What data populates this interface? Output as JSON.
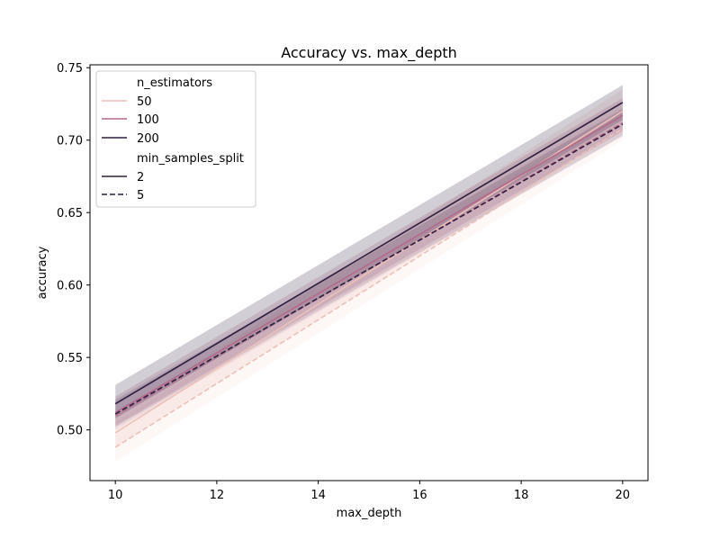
{
  "chart_data": {
    "type": "line",
    "title": "Accuracy vs. max_depth",
    "xlabel": "max_depth",
    "ylabel": "accuracy",
    "xlim": [
      9.5,
      20.5
    ],
    "ylim": [
      0.465,
      0.752
    ],
    "xticks": [
      10,
      12,
      14,
      16,
      18,
      20
    ],
    "yticks": [
      0.5,
      0.55,
      0.6,
      0.65,
      0.7,
      0.75
    ],
    "xtick_labels": [
      "10",
      "12",
      "14",
      "16",
      "18",
      "20"
    ],
    "ytick_labels": [
      "0.50",
      "0.55",
      "0.60",
      "0.65",
      "0.70",
      "0.75"
    ],
    "grid": false,
    "legend_position": "top-left",
    "legend": {
      "hue_title": "n_estimators",
      "style_title": "min_samples_split",
      "hue_entries": [
        {
          "label": "50",
          "color": "#ebc0b7"
        },
        {
          "label": "100",
          "color": "#b6698b"
        },
        {
          "label": "200",
          "color": "#2d1e3e"
        }
      ],
      "style_entries": [
        {
          "label": "2",
          "dash": "solid"
        },
        {
          "label": "5",
          "dash": "dashed"
        }
      ]
    },
    "series": [
      {
        "n_estimators": "50",
        "min_samples_split": "2",
        "color": "#ebc0b7",
        "dash": "solid",
        "x": [
          10,
          20
        ],
        "y": [
          0.498,
          0.72
        ],
        "ci_low": [
          0.488,
          0.708
        ],
        "ci_high": [
          0.51,
          0.735
        ]
      },
      {
        "n_estimators": "50",
        "min_samples_split": "5",
        "color": "#ebc0b7",
        "dash": "dashed",
        "x": [
          10,
          20
        ],
        "y": [
          0.488,
          0.708
        ],
        "ci_low": [
          0.478,
          0.7
        ],
        "ci_high": [
          0.505,
          0.722
        ]
      },
      {
        "n_estimators": "100",
        "min_samples_split": "2",
        "color": "#b6698b",
        "dash": "solid",
        "x": [
          10,
          20
        ],
        "y": [
          0.512,
          0.717
        ],
        "ci_low": [
          0.503,
          0.706
        ],
        "ci_high": [
          0.523,
          0.729
        ]
      },
      {
        "n_estimators": "100",
        "min_samples_split": "5",
        "color": "#b6698b",
        "dash": "dashed",
        "x": [
          10,
          20
        ],
        "y": [
          0.51,
          0.712
        ],
        "ci_low": [
          0.5,
          0.703
        ],
        "ci_high": [
          0.52,
          0.722
        ]
      },
      {
        "n_estimators": "200",
        "min_samples_split": "2",
        "color": "#2d1e3e",
        "dash": "solid",
        "x": [
          10,
          20
        ],
        "y": [
          0.518,
          0.726
        ],
        "ci_low": [
          0.508,
          0.714
        ],
        "ci_high": [
          0.531,
          0.738
        ]
      },
      {
        "n_estimators": "200",
        "min_samples_split": "5",
        "color": "#2d1e3e",
        "dash": "dashed",
        "x": [
          10,
          20
        ],
        "y": [
          0.511,
          0.711
        ],
        "ci_low": [
          0.502,
          0.703
        ],
        "ci_high": [
          0.521,
          0.721
        ]
      }
    ]
  }
}
